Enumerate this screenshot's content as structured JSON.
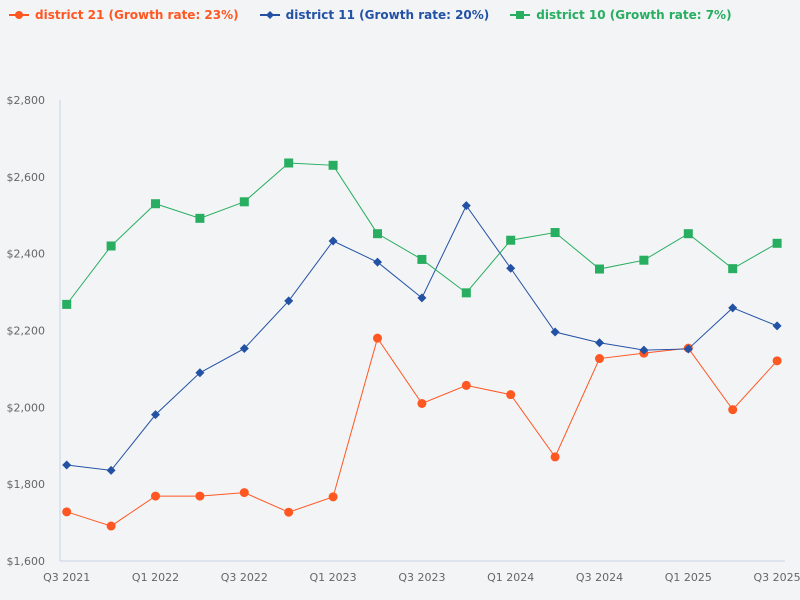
{
  "chart_data": {
    "type": "line",
    "title": "",
    "xlabel": "",
    "ylabel": "",
    "categories": [
      "Q3 2021",
      "Q4 2021",
      "Q1 2022",
      "Q2 2022",
      "Q3 2022",
      "Q4 2022",
      "Q1 2023",
      "Q2 2023",
      "Q3 2023",
      "Q4 2023",
      "Q1 2024",
      "Q2 2024",
      "Q3 2024",
      "Q4 2024",
      "Q1 2025",
      "Q2 2025",
      "Q3 2025"
    ],
    "x_tick_labels": [
      "Q3 2021",
      "Q1 2022",
      "Q3 2022",
      "Q1 2023",
      "Q3 2023",
      "Q1 2024",
      "Q3 2024",
      "Q1 2025",
      "Q3 2025"
    ],
    "y_tick_labels": [
      "$1,600",
      "$1,800",
      "$2,000",
      "$2,200",
      "$2,400",
      "$2,600",
      "$2,800"
    ],
    "ylim": [
      1600,
      2800
    ],
    "grid": false,
    "legend_position": "top-left",
    "series": [
      {
        "name": "district 21 (Growth rate: 23%)",
        "color": "#ff5722",
        "marker": "circle",
        "values": [
          1728,
          1691,
          1769,
          1769,
          1778,
          1727,
          1767,
          2180,
          2010,
          2057,
          2033,
          1871,
          2127,
          2141,
          2154,
          1994,
          2121
        ]
      },
      {
        "name": "district 11 (Growth rate: 20%)",
        "color": "#2352a5",
        "marker": "diamond",
        "values": [
          1850,
          1836,
          1981,
          2090,
          2153,
          2277,
          2433,
          2378,
          2285,
          2525,
          2362,
          2196,
          2168,
          2149,
          2152,
          2259,
          2212
        ]
      },
      {
        "name": "district 10 (Growth rate: 7%)",
        "color": "#27ae60",
        "marker": "square",
        "values": [
          2268,
          2420,
          2530,
          2492,
          2535,
          2636,
          2630,
          2452,
          2385,
          2298,
          2435,
          2455,
          2360,
          2383,
          2452,
          2361,
          2427
        ]
      }
    ]
  }
}
